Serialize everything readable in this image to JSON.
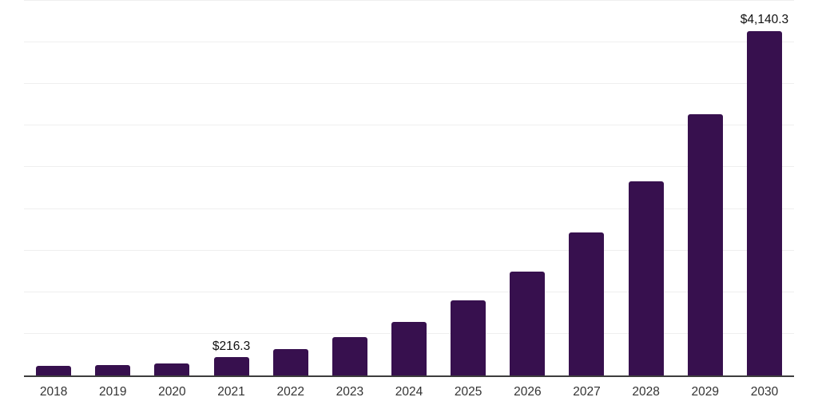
{
  "chart_data": {
    "type": "bar",
    "title": "",
    "xlabel": "",
    "ylabel": "",
    "categories": [
      "2018",
      "2019",
      "2020",
      "2021",
      "2022",
      "2023",
      "2024",
      "2025",
      "2026",
      "2027",
      "2028",
      "2029",
      "2030"
    ],
    "values": [
      119,
      129,
      148,
      216.3,
      312,
      458,
      640,
      899,
      1245,
      1720,
      2335,
      3135,
      4140.3
    ],
    "labeled_points": [
      {
        "category": "2021",
        "label": "$216.3"
      },
      {
        "category": "2030",
        "label": "$4,140.3"
      }
    ],
    "ylim": [
      0,
      4500
    ],
    "gridline_step": 500,
    "grid": "horizontal-only",
    "legend": "none",
    "y_axis_tick_labels": "none",
    "bar_color": "#37104e",
    "axis_line_color": "#3d3d3d",
    "gridline_color": "#efefef",
    "x_label_color": "#333333",
    "value_label_color": "#111111",
    "background_color": "#ffffff"
  }
}
